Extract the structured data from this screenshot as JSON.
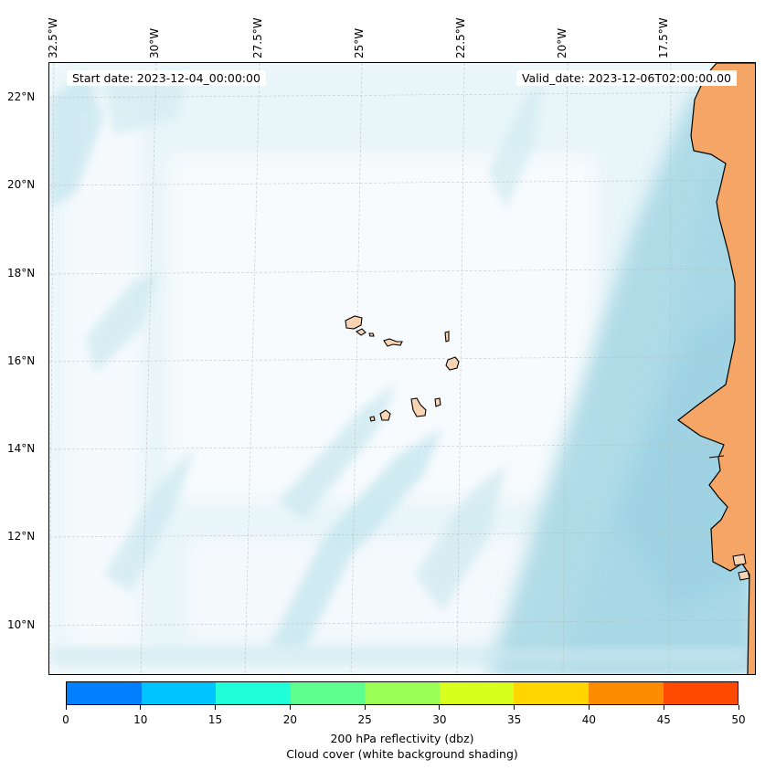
{
  "map": {
    "start_date": "Start date: 2023-12-04_00:00:00",
    "valid_date": "Valid_date: 2023-12-06T02:00:00.00",
    "lon_labels": [
      "32.5°W",
      "30°W",
      "27.5°W",
      "25°W",
      "22.5°W",
      "20°W",
      "17.5°W"
    ],
    "lat_labels": [
      "22°N",
      "20°N",
      "18°N",
      "16°N",
      "14°N",
      "12°N",
      "10°N"
    ],
    "colors": {
      "land": "#f5a565",
      "island": "#f8d3b4",
      "cloud": "#a8d8e6",
      "ocean": "#f7fbfd"
    }
  },
  "colorbar": {
    "ticks": [
      "0",
      "10",
      "15",
      "20",
      "25",
      "30",
      "35",
      "40",
      "45",
      "50"
    ],
    "colors": [
      "#0080ff",
      "#00c4ff",
      "#1fffd9",
      "#5eff8f",
      "#9bff55",
      "#d9ff1f",
      "#ffd600",
      "#ff8c00",
      "#ff4a00"
    ],
    "label": "200 hPa reflectivity (dbz)",
    "sublabel": "Cloud cover (white background shading)"
  }
}
